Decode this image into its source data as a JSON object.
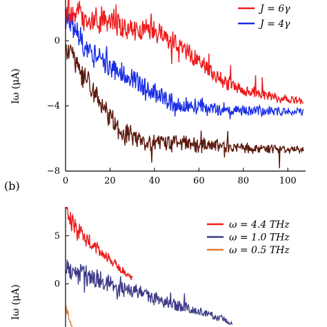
{
  "chart_data": [
    {
      "type": "line",
      "panel_label": "",
      "ylabel": "Iω (μA)",
      "xlim": [
        0,
        108
      ],
      "ylim": [
        -8,
        2.5
      ],
      "x_ticks": [
        "0",
        "20",
        "40",
        "60",
        "80",
        "100"
      ],
      "y_ticks": [
        "0",
        "−4",
        "−8"
      ],
      "legend": {
        "position": "top-right"
      },
      "series": [
        {
          "name": "J = 6γ",
          "color": "#ee1c1c",
          "x": [
            0,
            10,
            20,
            30,
            40,
            45,
            50,
            60,
            70,
            80,
            90,
            100,
            107
          ],
          "y": [
            2.0,
            1.4,
            1.2,
            0.8,
            0.5,
            0.2,
            -0.2,
            -1.2,
            -2.4,
            -3.0,
            -3.4,
            -3.6,
            -3.8
          ],
          "noise": 1.0
        },
        {
          "name": "J = 4γ",
          "color": "#1a2ee6",
          "x": [
            0,
            5,
            10,
            20,
            30,
            40,
            50,
            60,
            70,
            80,
            90,
            100,
            107
          ],
          "y": [
            1.6,
            0.4,
            -0.6,
            -1.6,
            -2.4,
            -3.2,
            -3.9,
            -4.1,
            -4.2,
            -4.3,
            -4.3,
            -4.35,
            -4.35
          ],
          "noise": 0.9
        },
        {
          "name": "",
          "color": "#5c1a0d",
          "x": [
            0,
            5,
            10,
            15,
            20,
            25,
            30,
            40,
            50,
            60,
            70,
            80,
            90,
            100,
            107
          ],
          "y": [
            -0.4,
            -1.5,
            -2.5,
            -3.6,
            -4.6,
            -5.6,
            -6.0,
            -6.2,
            -6.3,
            -6.4,
            -6.5,
            -6.6,
            -6.6,
            -6.65,
            -6.65
          ],
          "noise": 0.9
        }
      ]
    },
    {
      "type": "line",
      "panel_label": "(b)",
      "ylabel": "Iω (μA)",
      "ylim": [
        -4.5,
        8
      ],
      "y_ticks": [
        "5",
        "0"
      ],
      "legend": {
        "position": "top-right"
      },
      "series": [
        {
          "name": "ω = 4.4 THz",
          "color": "#ee1c1c",
          "x": [
            0,
            5,
            10,
            15,
            20,
            25,
            30
          ],
          "y": [
            7.5,
            5.5,
            4.5,
            3.5,
            2.5,
            1.5,
            0.5
          ],
          "noise": 1.2
        },
        {
          "name": "ω = 1.0 THz",
          "color": "#3c3a86",
          "x": [
            0,
            10,
            20,
            30,
            40,
            50,
            60,
            70,
            75
          ],
          "y": [
            1.5,
            0.8,
            -0.1,
            -0.8,
            -1.5,
            -2.2,
            -2.9,
            -3.6,
            -4.2
          ],
          "noise": 1.3
        },
        {
          "name": "ω = 0.5 THz",
          "color": "#e07a3a",
          "x": [
            0,
            1,
            2,
            3
          ],
          "y": [
            -2.5,
            -3.3,
            -4.0,
            -4.5
          ],
          "noise": 0.5
        }
      ]
    }
  ]
}
